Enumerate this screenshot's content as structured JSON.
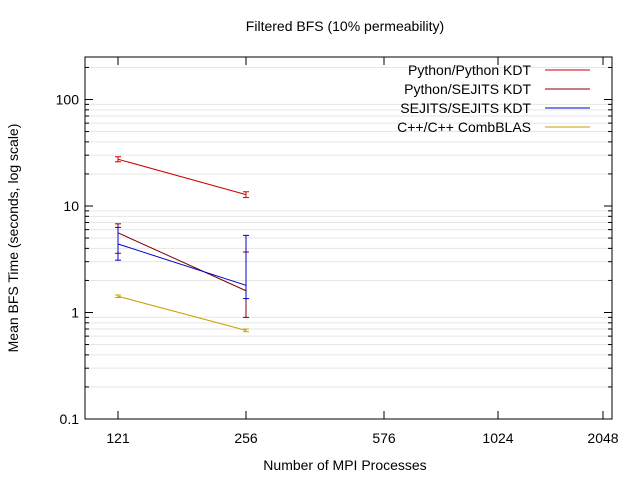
{
  "chart_data": {
    "type": "line",
    "title": "Filtered BFS (10% permeability)",
    "xlabel": "Number of MPI Processes",
    "ylabel": "Mean BFS Time (seconds, log scale)",
    "x_scale": "categorical",
    "categories": [
      "121",
      "256",
      "576",
      "1024",
      "2048"
    ],
    "y_scale": "log",
    "ylim": [
      0.1,
      250
    ],
    "y_ticks": [
      "0.1",
      "1",
      "10",
      "100"
    ],
    "grid": "horizontal minor lines",
    "legend_position": "top-right",
    "series": [
      {
        "name": "Python/Python KDT",
        "color": "#cc0000",
        "points": [
          {
            "x": "121",
            "y": 27.5,
            "err_low": 26.0,
            "err_high": 29.0
          },
          {
            "x": "256",
            "y": 12.8,
            "err_low": 12.0,
            "err_high": 13.6
          }
        ]
      },
      {
        "name": "Python/SEJITS KDT",
        "color": "#800000",
        "points": [
          {
            "x": "121",
            "y": 5.6,
            "err_low": 3.6,
            "err_high": 6.8
          },
          {
            "x": "256",
            "y": 1.6,
            "err_low": 0.9,
            "err_high": 3.7
          }
        ]
      },
      {
        "name": "SEJITS/SEJITS KDT",
        "color": "#0000cc",
        "points": [
          {
            "x": "121",
            "y": 4.4,
            "err_low": 3.1,
            "err_high": 6.3
          },
          {
            "x": "256",
            "y": 1.8,
            "err_low": 1.35,
            "err_high": 5.3
          }
        ]
      },
      {
        "name": "C++/C++ CombBLAS",
        "color": "#c8a000",
        "points": [
          {
            "x": "121",
            "y": 1.42,
            "err_low": 1.38,
            "err_high": 1.46
          },
          {
            "x": "256",
            "y": 0.68,
            "err_low": 0.66,
            "err_high": 0.7
          }
        ]
      }
    ]
  }
}
